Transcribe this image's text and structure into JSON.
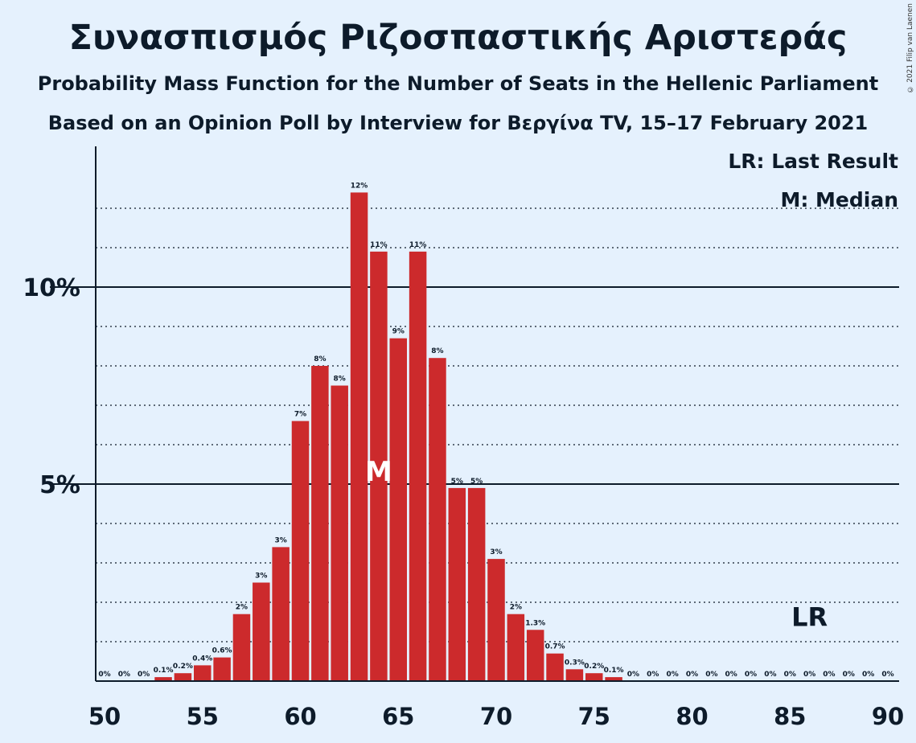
{
  "header": {
    "title": "Συνασπισμός Ριζοσπαστικής Αριστεράς",
    "subtitle1": "Probability Mass Function for the Number of Seats in the Hellenic Parliament",
    "subtitle2": "Based on an Opinion Poll by Interview for Βεργίνα TV, 15–17 February 2021",
    "copyright": "© 2021 Filip van Laenen"
  },
  "legend": {
    "last_result": "LR: Last Result",
    "median": "M: Median"
  },
  "chart_data": {
    "type": "bar",
    "x": [
      50,
      51,
      52,
      53,
      54,
      55,
      56,
      57,
      58,
      59,
      60,
      61,
      62,
      63,
      64,
      65,
      66,
      67,
      68,
      69,
      70,
      71,
      72,
      73,
      74,
      75,
      76,
      77,
      78,
      79,
      80,
      81,
      82,
      83,
      84,
      85,
      86,
      87,
      88,
      89,
      90
    ],
    "values": [
      0,
      0,
      0,
      0.1,
      0.2,
      0.4,
      0.6,
      1.7,
      2.5,
      3.4,
      6.6,
      8.0,
      7.5,
      12.4,
      10.9,
      8.7,
      10.9,
      8.2,
      4.9,
      4.9,
      3.1,
      1.7,
      1.3,
      0.7,
      0.3,
      0.2,
      0.1,
      0,
      0,
      0,
      0,
      0,
      0,
      0,
      0,
      0,
      0,
      0,
      0,
      0,
      0
    ],
    "labels": [
      "0%",
      "0%",
      "0%",
      "0.1%",
      "0.2%",
      "0.4%",
      "0.6%",
      "2%",
      "3%",
      "3%",
      "7%",
      "8%",
      "8%",
      "12%",
      "11%",
      "9%",
      "11%",
      "8%",
      "5%",
      "5%",
      "3%",
      "2%",
      "1.3%",
      "0.7%",
      "0.3%",
      "0.2%",
      "0.1%",
      "0%",
      "0%",
      "0%",
      "0%",
      "0%",
      "0%",
      "0%",
      "0%",
      "0%",
      "0%",
      "0%",
      "0%",
      "0%",
      "0%"
    ],
    "x_ticks": [
      50,
      55,
      60,
      65,
      70,
      75,
      80,
      85,
      90
    ],
    "x_tick_labels": [
      "50",
      "55",
      "60",
      "65",
      "70",
      "75",
      "80",
      "85",
      "90"
    ],
    "y_ticks": [
      5,
      10
    ],
    "y_tick_labels": [
      "5%",
      "10%"
    ],
    "xlim": [
      50,
      90
    ],
    "ylim": [
      0,
      13.5
    ],
    "median": 64,
    "median_label": "M",
    "last_result": 86,
    "last_result_label": "LR",
    "bar_color": "#cc2a2c",
    "grid": "dotted every 1%, solid at 5% and 10%"
  }
}
